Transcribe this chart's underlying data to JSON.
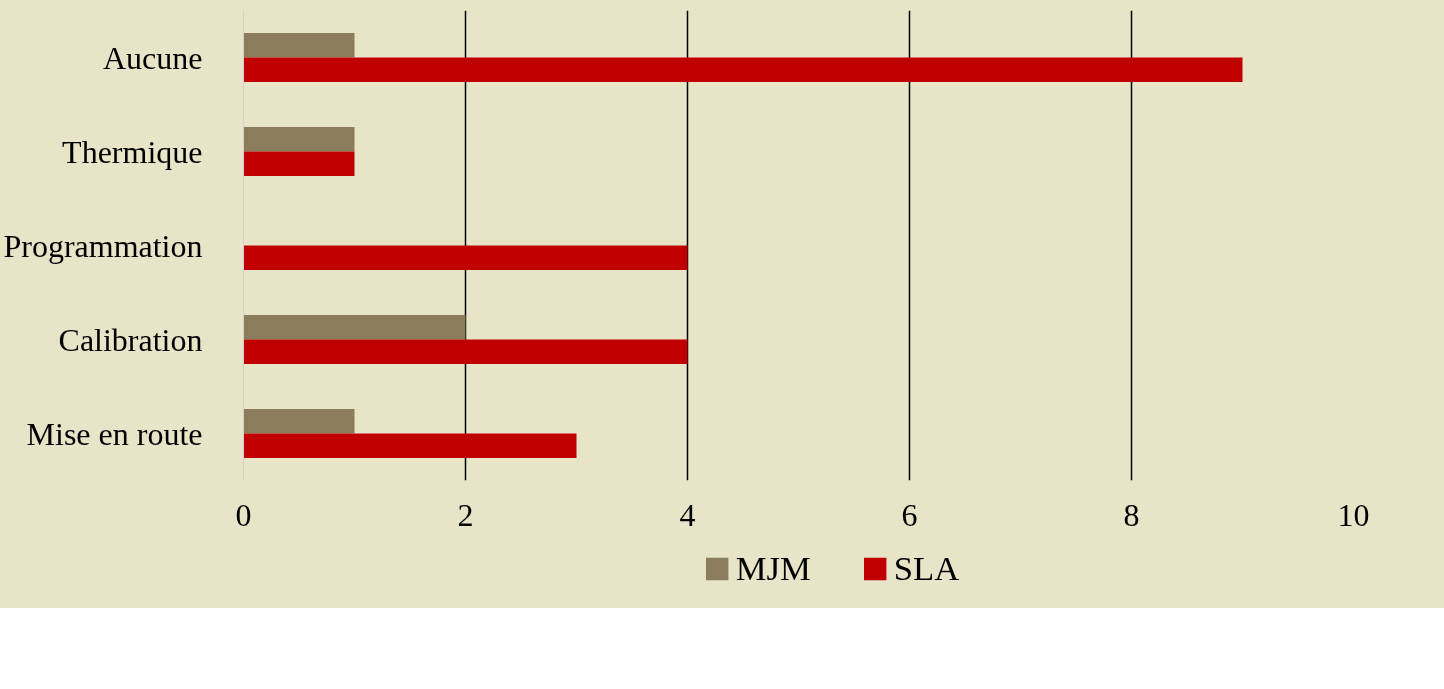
{
  "chart_data": {
    "type": "bar",
    "orientation": "horizontal",
    "categories": [
      "Aucune",
      "Thermique",
      "Programmation",
      "Calibration",
      "Mise en route"
    ],
    "series": [
      {
        "name": "MJM",
        "color": "#8b7d5b",
        "values": [
          1,
          1,
          0,
          2,
          1
        ]
      },
      {
        "name": "SLA",
        "color": "#c00000",
        "values": [
          9,
          1,
          4,
          4,
          3
        ]
      }
    ],
    "xlim": [
      0,
      10
    ],
    "xticks": [
      0,
      2,
      4,
      6,
      8,
      10
    ],
    "grid": "x",
    "legend": "bottom"
  }
}
